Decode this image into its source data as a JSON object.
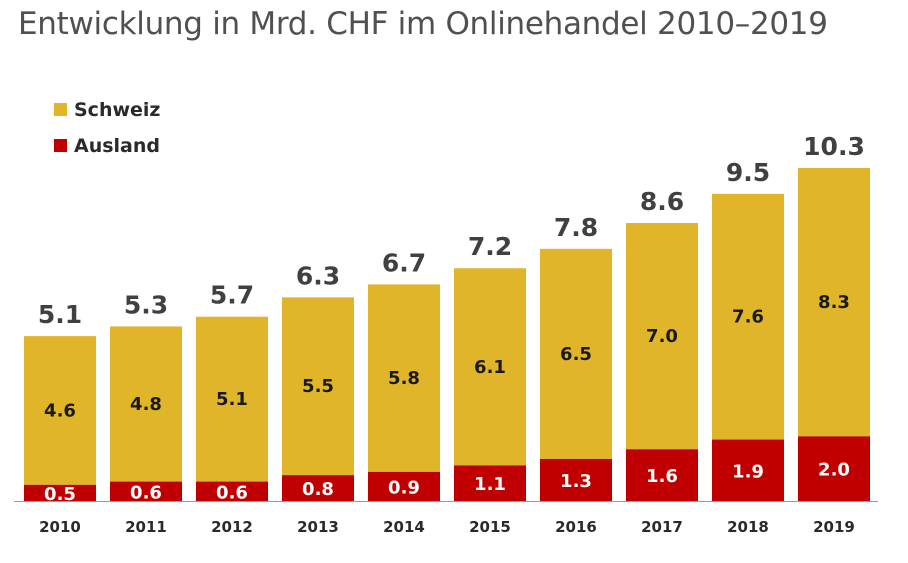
{
  "title": "Entwicklung in Mrd. CHF im Onlinehandel 2010–2019",
  "colors": {
    "schweiz": "#E0B52A",
    "ausland": "#C00000",
    "axis": "#9a9a9a"
  },
  "chart_data": {
    "type": "bar",
    "stacked": true,
    "title": "Entwicklung in Mrd. CHF im Onlinehandel 2010–2019",
    "categories": [
      "2010",
      "2011",
      "2012",
      "2013",
      "2014",
      "2015",
      "2016",
      "2017",
      "2018",
      "2019"
    ],
    "series": [
      {
        "name": "Ausland",
        "values": [
          0.5,
          0.6,
          0.6,
          0.8,
          0.9,
          1.1,
          1.3,
          1.6,
          1.9,
          2.0
        ]
      },
      {
        "name": "Schweiz",
        "values": [
          4.6,
          4.8,
          5.1,
          5.5,
          5.8,
          6.1,
          6.5,
          7.0,
          7.6,
          8.3
        ]
      }
    ],
    "totals": [
      "5.1",
      "5.3",
      "5.7",
      "6.3",
      "6.7",
      "7.2",
      "7.8",
      "8.6",
      "9.5",
      "10.3"
    ],
    "legend": [
      "Schweiz",
      "Ausland"
    ],
    "legend_position": "top-left",
    "ylim": [
      0,
      10.3
    ],
    "grid": false
  }
}
